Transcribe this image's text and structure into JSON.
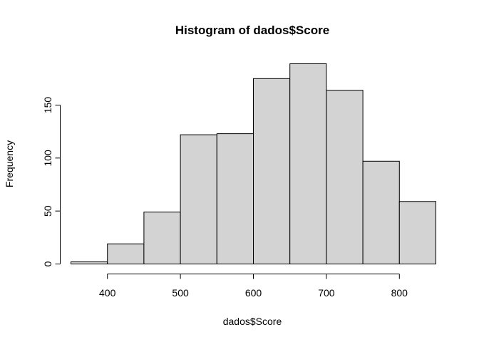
{
  "chart_data": {
    "type": "bar",
    "title": "Histogram of dados$Score",
    "xlabel": "dados$Score",
    "ylabel": "Frequency",
    "bin_edges": [
      350,
      400,
      450,
      500,
      550,
      600,
      650,
      700,
      750,
      800,
      850
    ],
    "values": [
      2,
      19,
      49,
      122,
      123,
      175,
      189,
      164,
      97,
      59
    ],
    "x_ticks": [
      400,
      500,
      600,
      700,
      800
    ],
    "y_ticks": [
      0,
      50,
      100,
      150
    ],
    "xlim": [
      350,
      850
    ],
    "ylim": [
      0,
      189
    ],
    "bar_color": "#d3d3d3",
    "grid": false,
    "legend": "none"
  }
}
